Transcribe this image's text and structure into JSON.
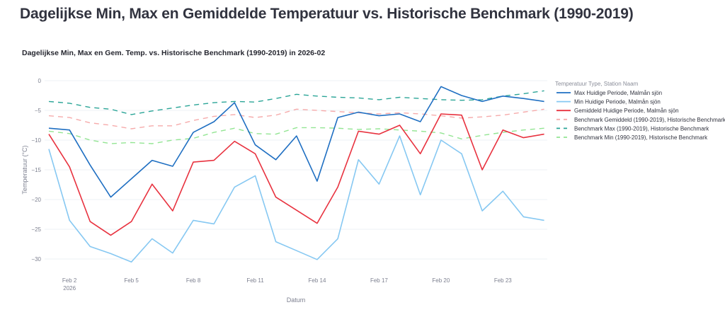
{
  "page": {
    "title": "Dagelijkse Min, Max en Gemiddelde Temperatuur vs. Historische Benchmark (1990-2019)"
  },
  "chart_data": {
    "type": "line",
    "title": "Dagelijkse Min, Max en Gem. Temp. vs. Historische Benchmark (1990-2019) in 2026-02",
    "xlabel": "Datum",
    "ylabel": "Temperatuur (°C)",
    "x": [
      "2026-02-01",
      "2026-02-02",
      "2026-02-03",
      "2026-02-04",
      "2026-02-05",
      "2026-02-06",
      "2026-02-07",
      "2026-02-08",
      "2026-02-09",
      "2026-02-10",
      "2026-02-11",
      "2026-02-12",
      "2026-02-13",
      "2026-02-14",
      "2026-02-15",
      "2026-02-16",
      "2026-02-17",
      "2026-02-18",
      "2026-02-19",
      "2026-02-20",
      "2026-02-21",
      "2026-02-22",
      "2026-02-23",
      "2026-02-24",
      "2026-02-25"
    ],
    "x_ticks": [
      {
        "day": 2,
        "label": "Feb 2",
        "sublabel": "2026"
      },
      {
        "day": 5,
        "label": "Feb 5"
      },
      {
        "day": 8,
        "label": "Feb 8"
      },
      {
        "day": 11,
        "label": "Feb 11"
      },
      {
        "day": 14,
        "label": "Feb 14"
      },
      {
        "day": 17,
        "label": "Feb 17"
      },
      {
        "day": 20,
        "label": "Feb 20"
      },
      {
        "day": 23,
        "label": "Feb 23"
      }
    ],
    "y_ticks": [
      0,
      -5,
      -10,
      -15,
      -20,
      -25,
      -30
    ],
    "ylim": [
      -32.5,
      1.5
    ],
    "xlim_days": [
      0.8,
      25.2
    ],
    "grid": true,
    "legend": {
      "title": "Temperatuur Type, Station Naam",
      "position": "top-right"
    },
    "series": [
      {
        "name": "Max Huidige Periode, Malmån sjön",
        "color": "#1f6fc2",
        "dash": "solid",
        "values": [
          -8.0,
          -8.3,
          -14.2,
          -19.6,
          -16.5,
          -13.4,
          -14.4,
          -8.7,
          -6.9,
          -3.7,
          -10.8,
          -13.3,
          -9.3,
          -16.9,
          -6.2,
          -5.3,
          -5.9,
          -5.6,
          -6.9,
          -1.0,
          -2.5,
          -3.5,
          -2.6,
          -3.0,
          -3.5
        ]
      },
      {
        "name": "Min Huidige Periode, Malmån sjön",
        "color": "#86c8f2",
        "dash": "solid",
        "values": [
          -11.5,
          -23.5,
          -27.9,
          -29.1,
          -30.5,
          -26.6,
          -29.0,
          -23.5,
          -24.1,
          -17.9,
          -16.0,
          -27.1,
          -28.6,
          -30.1,
          -26.6,
          -13.3,
          -17.4,
          -9.3,
          -19.2,
          -10.0,
          -12.3,
          -21.9,
          -18.6,
          -22.9,
          -23.5
        ]
      },
      {
        "name": "Gemiddeld Huidige Periode, Malmån sjön",
        "color": "#e8323f",
        "dash": "solid",
        "values": [
          -9.0,
          -14.5,
          -23.7,
          -26.0,
          -23.7,
          -17.4,
          -21.9,
          -13.7,
          -13.4,
          -10.2,
          -12.3,
          -19.6,
          -21.8,
          -24.0,
          -17.9,
          -8.5,
          -9.0,
          -7.5,
          -12.3,
          -5.6,
          -5.8,
          -15.0,
          -8.3,
          -9.6,
          -9.0
        ]
      },
      {
        "name": "Benchmark Gemiddeld (1990-2019), Historische Benchmark",
        "color": "#f6abab",
        "dash": "dashed",
        "values": [
          -5.9,
          -6.2,
          -7.1,
          -7.5,
          -8.1,
          -7.6,
          -7.6,
          -6.7,
          -6.0,
          -5.7,
          -6.2,
          -5.8,
          -4.8,
          -5.0,
          -5.2,
          -5.4,
          -5.6,
          -5.4,
          -5.6,
          -5.9,
          -6.3,
          -6.1,
          -5.8,
          -5.3,
          -4.8
        ]
      },
      {
        "name": "Benchmark Max (1990-2019), Historische Benchmark",
        "color": "#2ba597",
        "dash": "dashed",
        "values": [
          -3.5,
          -3.8,
          -4.5,
          -4.8,
          -5.7,
          -5.1,
          -4.6,
          -4.1,
          -3.7,
          -3.5,
          -3.6,
          -3.0,
          -2.3,
          -2.6,
          -2.8,
          -2.9,
          -3.2,
          -2.8,
          -3.0,
          -3.2,
          -3.3,
          -3.2,
          -2.6,
          -2.2,
          -1.7
        ]
      },
      {
        "name": "Benchmark Min (1990-2019), Historische Benchmark",
        "color": "#93e593",
        "dash": "dashed",
        "values": [
          -8.5,
          -8.9,
          -10.0,
          -10.6,
          -10.4,
          -10.6,
          -10.0,
          -9.7,
          -8.7,
          -8.0,
          -8.9,
          -9.0,
          -7.9,
          -7.9,
          -8.0,
          -8.2,
          -8.1,
          -8.3,
          -8.5,
          -8.8,
          -9.8,
          -9.2,
          -8.7,
          -8.3,
          -8.0
        ]
      }
    ]
  }
}
